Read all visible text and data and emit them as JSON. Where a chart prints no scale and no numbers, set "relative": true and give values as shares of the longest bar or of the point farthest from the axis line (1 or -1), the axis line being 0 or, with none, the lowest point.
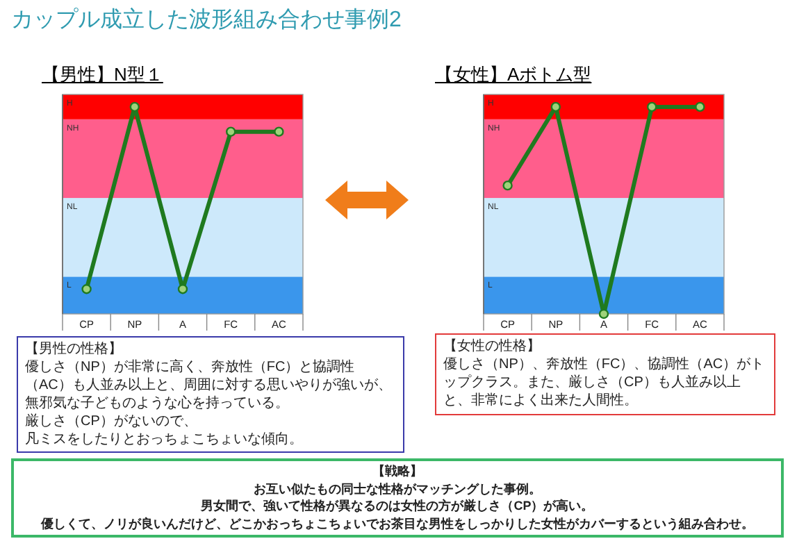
{
  "chart_data": [
    {
      "type": "other",
      "title": "カップル成立した波形組み合わせ事例2"
    },
    {
      "type": "line",
      "title": "【男性】N型１",
      "relative": true,
      "categories": [
        "CP",
        "NP",
        "A",
        "FC",
        "AC"
      ],
      "tick_labels": "x",
      "marker": "circle",
      "series": [
        {
          "color": "#1f7a1f",
          "values": [
            0.12,
            1,
            0.12,
            0.88,
            0.88
          ]
        }
      ],
      "bands": [
        {
          "axis": "y",
          "from": 0,
          "to": 0.18,
          "label": "L",
          "color": "#3a96ec"
        },
        {
          "axis": "y",
          "from": 0.18,
          "to": 0.56,
          "label": "NL",
          "color": "#cde9fb"
        },
        {
          "axis": "y",
          "from": 0.56,
          "to": 0.94,
          "label": "NH",
          "color": "#ff5e8c"
        },
        {
          "axis": "y",
          "from": 0.94,
          "to": 1.06,
          "label": "H",
          "color": "#ff0000"
        }
      ],
      "annotations": [
        "【男性の性格】",
        "優しさ（NP）が非常に高く、奔放性（FC）と協調性（AC）も人並み以上と、周囲に対する思いやりが強いが、無邪気な子どものような心を持っている。",
        "厳しさ（CP）がないので、",
        "凡ミスをしたりとおっちょこちょいな傾向。"
      ]
    },
    {
      "type": "line",
      "title": "【女性】Aボトム型",
      "relative": true,
      "categories": [
        "CP",
        "NP",
        "A",
        "FC",
        "AC"
      ],
      "tick_labels": "x",
      "marker": "circle",
      "series": [
        {
          "color": "#1f7a1f",
          "values": [
            0.62,
            1,
            0,
            1,
            1
          ]
        }
      ],
      "bands": [
        {
          "axis": "y",
          "from": 0,
          "to": 0.18,
          "label": "L",
          "color": "#3a96ec"
        },
        {
          "axis": "y",
          "from": 0.18,
          "to": 0.56,
          "label": "NL",
          "color": "#cde9fb"
        },
        {
          "axis": "y",
          "from": 0.56,
          "to": 0.94,
          "label": "NH",
          "color": "#ff5e8c"
        },
        {
          "axis": "y",
          "from": 0.94,
          "to": 1.06,
          "label": "H",
          "color": "#ff0000"
        }
      ],
      "annotations": [
        "【女性の性格】",
        "優しさ（NP）、奔放性（FC）、協調性（AC）がトップクラス。また、厳しさ（CP）も人並み以上と、非常によく出来た人間性。"
      ]
    },
    {
      "type": "other",
      "title": "【戦略】",
      "annotations": [
        "お互い似たもの同士な性格がマッチングした事例。",
        "男女間で、強いて性格が異なるのは女性の方が厳しさ（CP）が高い。",
        "優しくて、ノリが良いんだけど、どこかおっちょこちょいでお茶目な男性をしっかりした女性がカバーするという組み合わせ。"
      ]
    }
  ]
}
